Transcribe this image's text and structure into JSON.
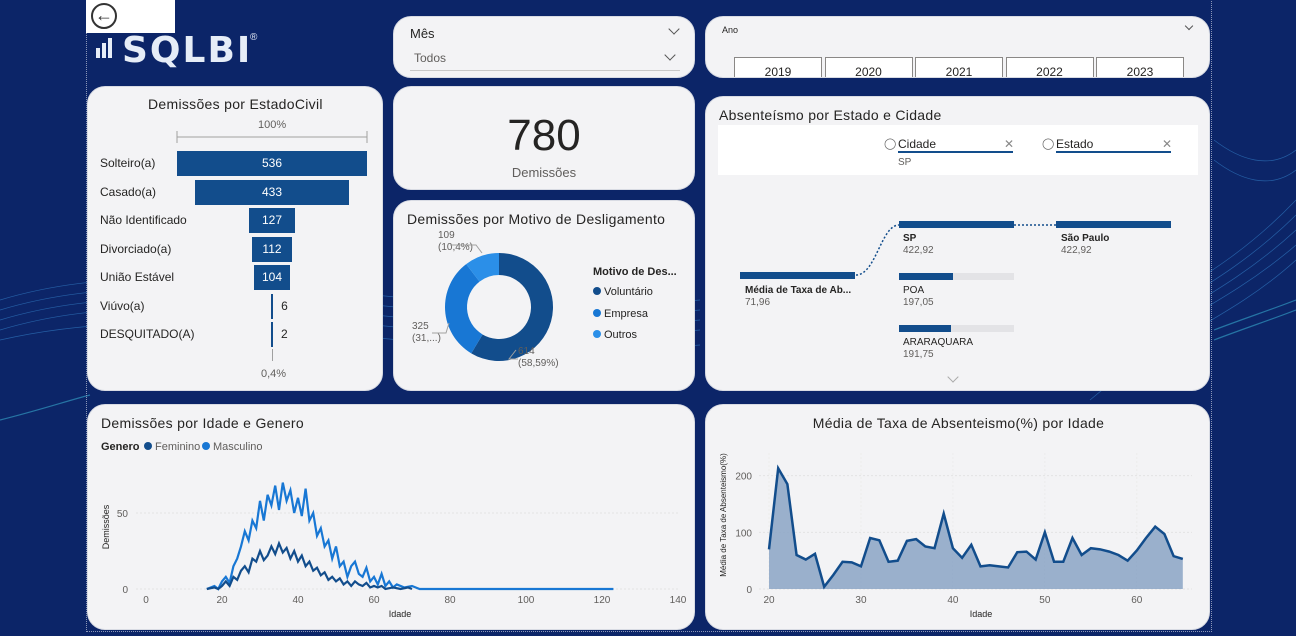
{
  "nav": {
    "back_icon": "back-arrow-icon",
    "logo_text": "SQLBI",
    "logo_reg": "®"
  },
  "month_slicer": {
    "label": "Mês",
    "value": "Todos"
  },
  "year_slicer": {
    "label": "Ano",
    "options": [
      "2019",
      "2020",
      "2021",
      "2022",
      "2023"
    ]
  },
  "funnel": {
    "title": "Demissões por EstadoCivil",
    "top_pct": "100%",
    "bottom_pct": "0,4%",
    "rows": [
      {
        "label": "Solteiro(a)",
        "value": 536
      },
      {
        "label": "Casado(a)",
        "value": 433
      },
      {
        "label": "Não Identificado",
        "value": 127
      },
      {
        "label": "Divorciado(a)",
        "value": 112
      },
      {
        "label": "União Estável",
        "value": 104
      },
      {
        "label": "Viúvo(a)",
        "value": 6
      },
      {
        "label": "DESQUITADO(A)",
        "value": 2
      }
    ]
  },
  "kpi": {
    "value": "780",
    "label": "Demissões"
  },
  "donut": {
    "title": "Demissões por Motivo de Desligamento",
    "legend_title": "Motivo de Des...",
    "slices": [
      {
        "name": "Voluntário",
        "value": 614,
        "pct": "(58,59%)",
        "color": "#124d8c"
      },
      {
        "name": "Empresa",
        "value": 325,
        "pct": "(31,...)",
        "color": "#1877d4"
      },
      {
        "name": "Outros",
        "value": 109,
        "pct": "(10,4%)",
        "color": "#2b8fe8"
      }
    ]
  },
  "decomp": {
    "title": "Absenteísmo por Estado e Cidade",
    "filters": [
      {
        "name": "Cidade",
        "value": "SP"
      },
      {
        "name": "Estado",
        "value": ""
      }
    ],
    "root": {
      "name": "Média de Taxa de Ab...",
      "value": "71,96"
    },
    "level1": [
      {
        "name": "SP",
        "value": "422,92",
        "fill": 1.0
      },
      {
        "name": "POA",
        "value": "197,05",
        "fill": 0.466
      },
      {
        "name": "ARARAQUARA",
        "value": "191,75",
        "fill": 0.453
      }
    ],
    "level2": {
      "name": "São Paulo",
      "value": "422,92"
    }
  },
  "chart_data": [
    {
      "type": "line",
      "title": "Demissões por Idade e Genero",
      "legend_title": "Genero",
      "xlabel": "Idade",
      "ylabel": "Demissões",
      "xlim": [
        0,
        140
      ],
      "ylim": [
        0,
        75
      ],
      "x_ticks": [
        0,
        20,
        40,
        60,
        80,
        100,
        120,
        140
      ],
      "y_ticks": [
        0,
        50
      ],
      "series": [
        {
          "name": "Feminino",
          "color": "#124d8c",
          "points": [
            [
              16,
              0
            ],
            [
              18,
              1
            ],
            [
              19,
              0
            ],
            [
              20,
              2
            ],
            [
              21,
              5
            ],
            [
              22,
              2
            ],
            [
              23,
              8
            ],
            [
              24,
              6
            ],
            [
              25,
              12
            ],
            [
              26,
              15
            ],
            [
              27,
              11
            ],
            [
              28,
              20
            ],
            [
              29,
              18
            ],
            [
              30,
              25
            ],
            [
              31,
              19
            ],
            [
              32,
              22
            ],
            [
              33,
              28
            ],
            [
              34,
              23
            ],
            [
              35,
              30
            ],
            [
              36,
              24
            ],
            [
              37,
              27
            ],
            [
              38,
              20
            ],
            [
              39,
              25
            ],
            [
              40,
              18
            ],
            [
              41,
              22
            ],
            [
              42,
              15
            ],
            [
              43,
              18
            ],
            [
              44,
              12
            ],
            [
              45,
              14
            ],
            [
              46,
              9
            ],
            [
              47,
              11
            ],
            [
              48,
              6
            ],
            [
              49,
              8
            ],
            [
              50,
              5
            ],
            [
              51,
              7
            ],
            [
              52,
              3
            ],
            [
              53,
              5
            ],
            [
              54,
              2
            ],
            [
              55,
              5
            ],
            [
              56,
              3
            ],
            [
              57,
              2
            ],
            [
              58,
              4
            ],
            [
              59,
              1
            ],
            [
              60,
              2
            ],
            [
              61,
              1
            ],
            [
              62,
              2
            ],
            [
              63,
              0
            ],
            [
              65,
              1
            ],
            [
              67,
              0
            ],
            [
              69,
              1
            ],
            [
              70,
              0
            ]
          ]
        },
        {
          "name": "Masculino",
          "color": "#1877d4",
          "points": [
            [
              16,
              0
            ],
            [
              18,
              2
            ],
            [
              19,
              0
            ],
            [
              20,
              5
            ],
            [
              21,
              8
            ],
            [
              22,
              4
            ],
            [
              23,
              15
            ],
            [
              24,
              20
            ],
            [
              25,
              28
            ],
            [
              26,
              38
            ],
            [
              27,
              32
            ],
            [
              28,
              45
            ],
            [
              29,
              40
            ],
            [
              30,
              58
            ],
            [
              31,
              45
            ],
            [
              32,
              62
            ],
            [
              33,
              55
            ],
            [
              34,
              68
            ],
            [
              35,
              52
            ],
            [
              36,
              70
            ],
            [
              37,
              58
            ],
            [
              38,
              65
            ],
            [
              39,
              50
            ],
            [
              40,
              60
            ],
            [
              41,
              48
            ],
            [
              42,
              66
            ],
            [
              43,
              45
            ],
            [
              44,
              50
            ],
            [
              45,
              35
            ],
            [
              46,
              40
            ],
            [
              47,
              28
            ],
            [
              48,
              32
            ],
            [
              49,
              20
            ],
            [
              50,
              28
            ],
            [
              51,
              15
            ],
            [
              52,
              18
            ],
            [
              53,
              8
            ],
            [
              54,
              15
            ],
            [
              55,
              18
            ],
            [
              56,
              10
            ],
            [
              57,
              8
            ],
            [
              58,
              14
            ],
            [
              59,
              5
            ],
            [
              60,
              8
            ],
            [
              61,
              3
            ],
            [
              62,
              10
            ],
            [
              63,
              2
            ],
            [
              64,
              5
            ],
            [
              65,
              1
            ],
            [
              66,
              3
            ],
            [
              68,
              1
            ],
            [
              70,
              2
            ],
            [
              72,
              0
            ],
            [
              80,
              0
            ],
            [
              100,
              0
            ],
            [
              123,
              0
            ]
          ]
        }
      ]
    },
    {
      "type": "area",
      "title": "Média de Taxa de Absenteismo(%) por Idade",
      "xlabel": "Idade",
      "ylabel": "Média de Taxa de Absenteismo(%)",
      "xlim": [
        20,
        66
      ],
      "ylim": [
        0,
        240
      ],
      "x_ticks": [
        20,
        30,
        40,
        50,
        60
      ],
      "y_ticks": [
        0,
        100,
        200
      ],
      "color": "#124d8c",
      "fill": "#8aa3c4",
      "x": [
        20,
        21,
        22,
        23,
        24,
        25,
        26,
        27,
        28,
        29,
        30,
        31,
        32,
        33,
        34,
        35,
        36,
        37,
        38,
        39,
        40,
        41,
        42,
        43,
        44,
        45,
        46,
        47,
        48,
        49,
        50,
        51,
        52,
        53,
        54,
        55,
        56,
        57,
        58,
        59,
        60,
        61,
        62,
        63,
        64,
        65
      ],
      "values": [
        70,
        213,
        185,
        60,
        52,
        62,
        4,
        25,
        48,
        47,
        40,
        90,
        86,
        48,
        50,
        85,
        88,
        75,
        72,
        133,
        72,
        55,
        78,
        40,
        42,
        40,
        38,
        65,
        66,
        52,
        100,
        48,
        48,
        90,
        60,
        72,
        70,
        66,
        60,
        50,
        68,
        90,
        110,
        97,
        58,
        53
      ]
    }
  ]
}
